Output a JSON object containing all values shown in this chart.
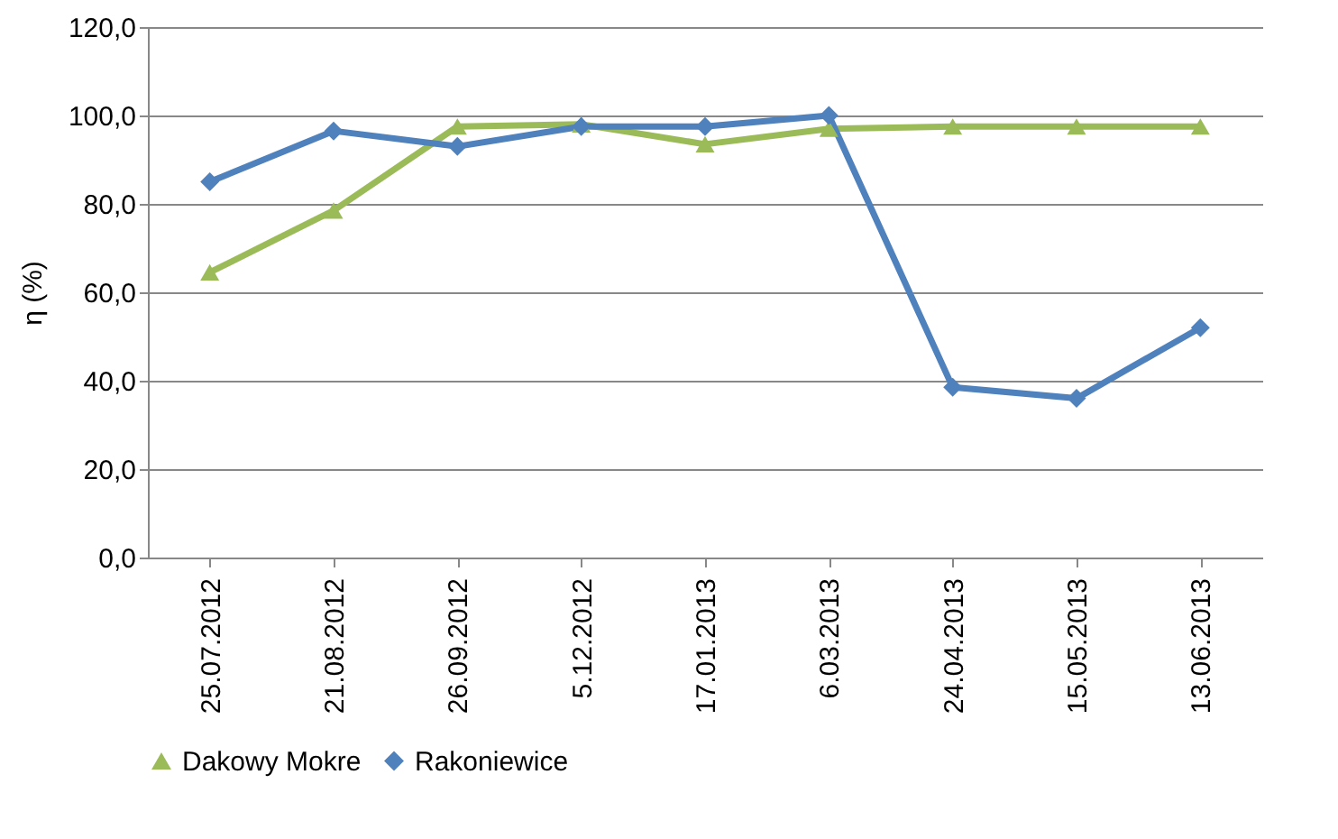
{
  "chart_data": {
    "type": "line",
    "ylabel": "η (%)",
    "categories": [
      "25.07.2012",
      "21.08.2012",
      "26.09.2012",
      "5.12.2012",
      "17.01.2013",
      "6.03.2013",
      "24.04.2013",
      "15.05.2013",
      "13.06.2013"
    ],
    "series": [
      {
        "name": "Dakowy Mokre",
        "color": "#9bbb59",
        "marker": "triangle",
        "values": [
          64.5,
          78.5,
          97.5,
          98,
          93.5,
          97,
          97.5,
          97.5,
          97.5
        ]
      },
      {
        "name": "Rakoniewice",
        "color": "#4f81bd",
        "marker": "diamond",
        "values": [
          85,
          96.5,
          93,
          97.5,
          97.5,
          100,
          38.5,
          36,
          52
        ]
      }
    ],
    "ylim": [
      0,
      120
    ],
    "yticks": [
      {
        "value": 0,
        "label": "0,0"
      },
      {
        "value": 20,
        "label": "20,0"
      },
      {
        "value": 40,
        "label": "40,0"
      },
      {
        "value": 60,
        "label": "60,0"
      },
      {
        "value": 80,
        "label": "80,0"
      },
      {
        "value": 100,
        "label": "100,0"
      },
      {
        "value": 120,
        "label": "120,0"
      }
    ],
    "grid": "y",
    "legend": "bottom",
    "line_style": "solid"
  }
}
